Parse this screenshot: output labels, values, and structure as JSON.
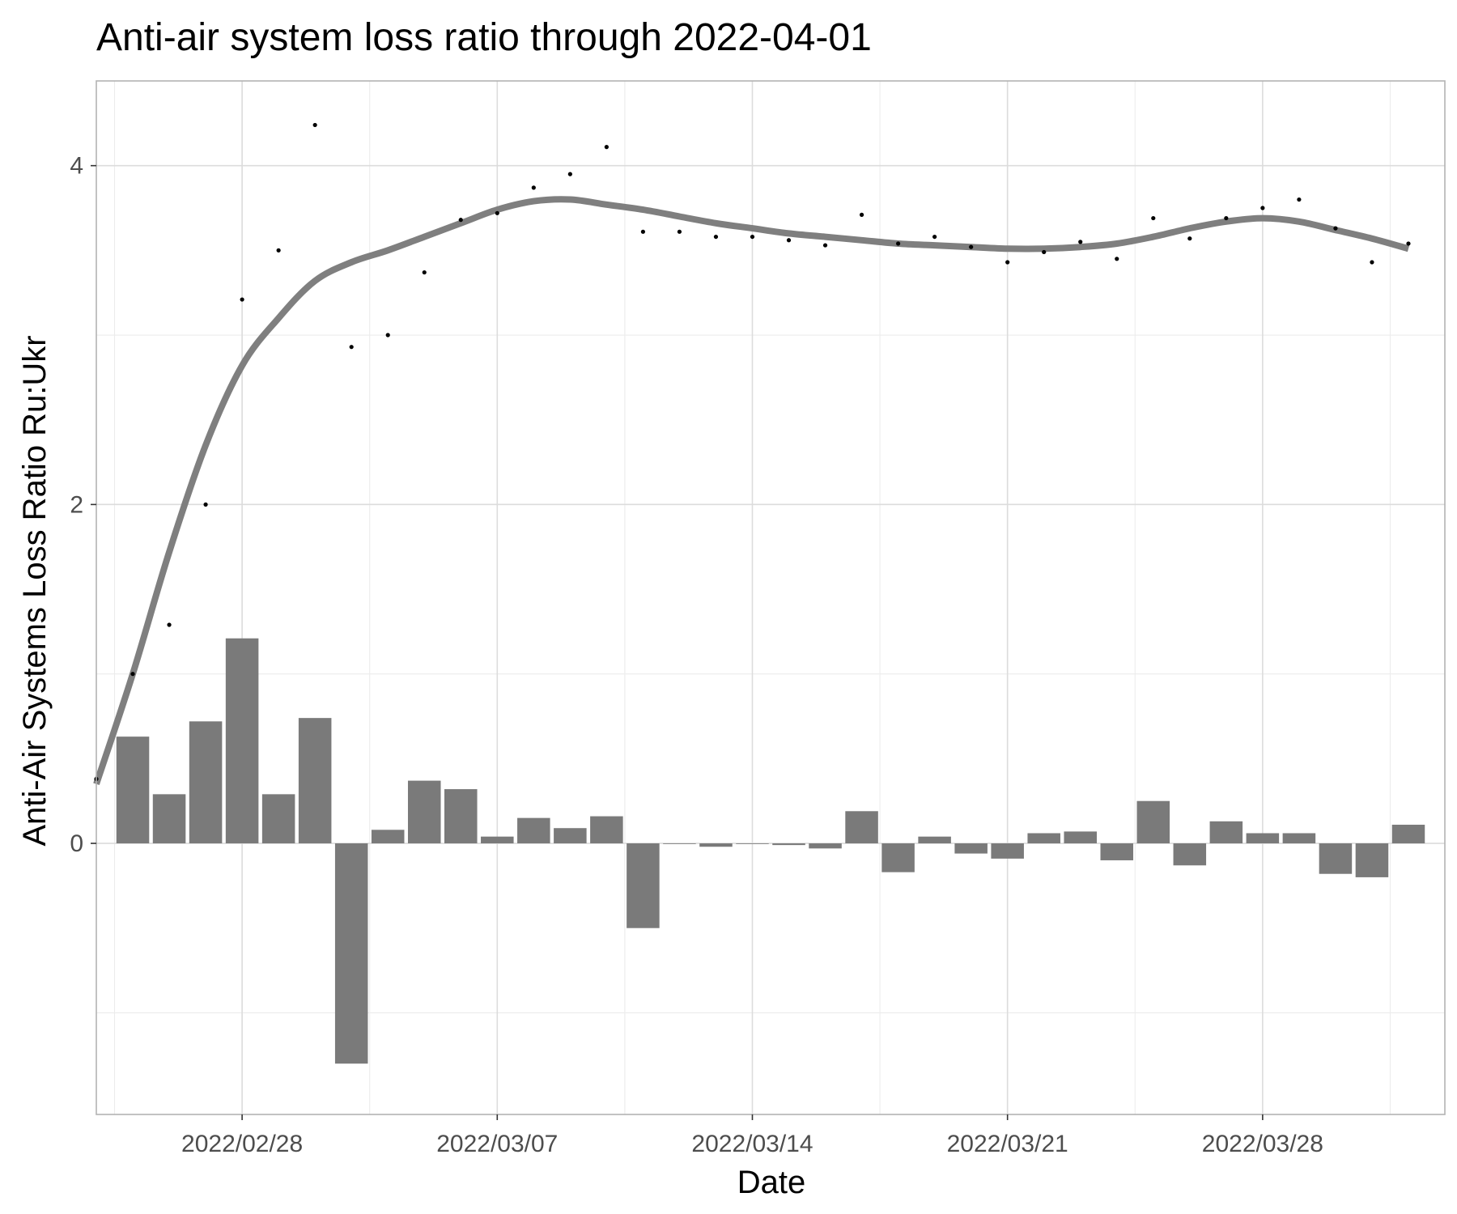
{
  "chart_data": {
    "type": "bar",
    "title": "Anti-air system loss ratio through 2022-04-01",
    "xlabel": "Date",
    "ylabel": "Anti-Air Systems Loss Ratio Ru:Ukr",
    "x_ticks": [
      "2022/02/28",
      "2022/03/07",
      "2022/03/14",
      "2022/03/21",
      "2022/03/28"
    ],
    "y_ticks": [
      "0",
      "2",
      "4"
    ],
    "ylim": [
      -1.6,
      4.5
    ],
    "xlim": [
      "2022-02-24",
      "2022-04-02"
    ],
    "grid": true,
    "colors": {
      "bars": "#7a7a7a",
      "smooth_line": "#7f7f7f",
      "points": "#000000",
      "background": "#ffffff",
      "grid": "#dcdcdc"
    },
    "series": [
      {
        "kind": "bar",
        "x": [
          "2022-02-25",
          "2022-02-26",
          "2022-02-27",
          "2022-02-28",
          "2022-03-01",
          "2022-03-02",
          "2022-03-03",
          "2022-03-04",
          "2022-03-05",
          "2022-03-06",
          "2022-03-07",
          "2022-03-08",
          "2022-03-09",
          "2022-03-10",
          "2022-03-11",
          "2022-03-12",
          "2022-03-13",
          "2022-03-14",
          "2022-03-15",
          "2022-03-16",
          "2022-03-17",
          "2022-03-18",
          "2022-03-19",
          "2022-03-20",
          "2022-03-21",
          "2022-03-22",
          "2022-03-23",
          "2022-03-24",
          "2022-03-25",
          "2022-03-26",
          "2022-03-27",
          "2022-03-28",
          "2022-03-29",
          "2022-03-30",
          "2022-03-31",
          "2022-04-01"
        ],
        "values": [
          0.63,
          0.29,
          0.72,
          1.21,
          0.29,
          0.74,
          -1.3,
          0.08,
          0.37,
          0.32,
          0.04,
          0.15,
          0.09,
          0.16,
          -0.5,
          0.0,
          -0.02,
          0.0,
          -0.01,
          -0.03,
          0.19,
          -0.17,
          0.04,
          -0.06,
          -0.09,
          0.06,
          0.07,
          -0.1,
          0.25,
          -0.13,
          0.13,
          0.06,
          0.06,
          -0.18,
          -0.2,
          0.11
        ]
      },
      {
        "kind": "scatter",
        "x": [
          "2022-02-24",
          "2022-02-25",
          "2022-02-26",
          "2022-02-27",
          "2022-02-28",
          "2022-03-01",
          "2022-03-02",
          "2022-03-03",
          "2022-03-04",
          "2022-03-05",
          "2022-03-06",
          "2022-03-07",
          "2022-03-08",
          "2022-03-09",
          "2022-03-10",
          "2022-03-11",
          "2022-03-12",
          "2022-03-13",
          "2022-03-14",
          "2022-03-15",
          "2022-03-16",
          "2022-03-17",
          "2022-03-18",
          "2022-03-19",
          "2022-03-20",
          "2022-03-21",
          "2022-03-22",
          "2022-03-23",
          "2022-03-24",
          "2022-03-25",
          "2022-03-26",
          "2022-03-27",
          "2022-03-28",
          "2022-03-29",
          "2022-03-30",
          "2022-03-31",
          "2022-04-01"
        ],
        "values": [
          0.38,
          1.0,
          1.29,
          2.0,
          3.21,
          3.5,
          4.24,
          2.93,
          3.0,
          3.37,
          3.68,
          3.72,
          3.87,
          3.95,
          4.11,
          3.61,
          3.61,
          3.58,
          3.58,
          3.56,
          3.53,
          3.71,
          3.54,
          3.58,
          3.52,
          3.43,
          3.49,
          3.55,
          3.45,
          3.69,
          3.57,
          3.69,
          3.75,
          3.8,
          3.63,
          3.43,
          3.54
        ]
      },
      {
        "kind": "smooth-line",
        "x": [
          "2022-02-24",
          "2022-02-25",
          "2022-02-26",
          "2022-02-27",
          "2022-02-28",
          "2022-03-01",
          "2022-03-02",
          "2022-03-03",
          "2022-03-04",
          "2022-03-05",
          "2022-03-06",
          "2022-03-07",
          "2022-03-08",
          "2022-03-09",
          "2022-03-10",
          "2022-03-11",
          "2022-03-12",
          "2022-03-13",
          "2022-03-14",
          "2022-03-15",
          "2022-03-16",
          "2022-03-17",
          "2022-03-18",
          "2022-03-19",
          "2022-03-20",
          "2022-03-21",
          "2022-03-22",
          "2022-03-23",
          "2022-03-24",
          "2022-03-25",
          "2022-03-26",
          "2022-03-27",
          "2022-03-28",
          "2022-03-29",
          "2022-03-30",
          "2022-03-31",
          "2022-04-01"
        ],
        "values": [
          0.35,
          1.0,
          1.72,
          2.35,
          2.82,
          3.1,
          3.32,
          3.43,
          3.5,
          3.58,
          3.66,
          3.74,
          3.79,
          3.8,
          3.77,
          3.74,
          3.7,
          3.66,
          3.63,
          3.6,
          3.58,
          3.56,
          3.54,
          3.53,
          3.52,
          3.51,
          3.51,
          3.52,
          3.54,
          3.58,
          3.63,
          3.67,
          3.69,
          3.67,
          3.62,
          3.57,
          3.51
        ]
      }
    ]
  }
}
